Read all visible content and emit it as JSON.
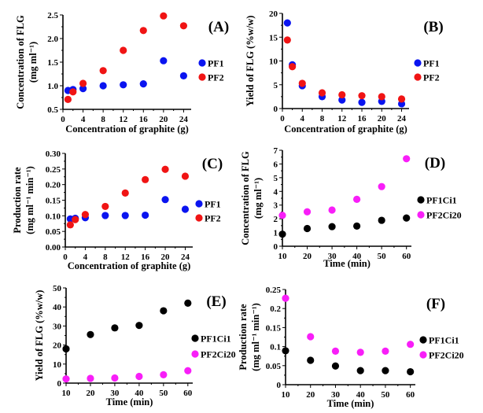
{
  "figure": {
    "panels": [
      "A",
      "B",
      "C",
      "D",
      "E",
      "F"
    ]
  },
  "colors": {
    "PF1": "#0a14f0",
    "PF2": "#f01414",
    "PF1Ci1": "#000000",
    "PF2Ci20": "#f81ef8"
  },
  "chart_data": [
    {
      "id": "A",
      "type": "scatter",
      "panel_label": "(A)",
      "title": "",
      "xlabel": "Concentration of graphite (g)",
      "ylabel_lines": [
        "Concentration of FLG",
        "(mg ml⁻¹)"
      ],
      "xlim": [
        0,
        25.5
      ],
      "ylim": [
        0.5,
        2.5
      ],
      "xticks": [
        0,
        4,
        8,
        12,
        16,
        20,
        24
      ],
      "xtick_labels": [
        "0",
        "4",
        "8",
        "12",
        "16",
        "20",
        "24"
      ],
      "yticks": [
        0.5,
        1.0,
        1.5,
        2.0,
        2.5
      ],
      "ytick_labels": [
        "0.5",
        "1.0",
        "1.5",
        "2.0",
        "2.5"
      ],
      "grid": false,
      "legend": "right",
      "series": [
        {
          "name": "PF1",
          "color_key": "PF1",
          "x": [
            1,
            2,
            4,
            8,
            12,
            16,
            20,
            24
          ],
          "y": [
            0.9,
            0.92,
            0.94,
            1.0,
            1.02,
            1.04,
            1.53,
            1.21
          ]
        },
        {
          "name": "PF2",
          "color_key": "PF2",
          "x": [
            1,
            2,
            4,
            8,
            12,
            16,
            20,
            24
          ],
          "y": [
            0.71,
            0.87,
            1.05,
            1.32,
            1.75,
            2.17,
            2.48,
            2.27
          ]
        }
      ]
    },
    {
      "id": "B",
      "type": "scatter",
      "panel_label": "(B)",
      "title": "",
      "xlabel": "Concentration of graphite (g)",
      "ylabel_lines": [
        "Yield of FLG (%w/w)"
      ],
      "xlim": [
        0,
        25.5
      ],
      "ylim": [
        0,
        20
      ],
      "xticks": [
        0,
        4,
        8,
        12,
        16,
        20,
        24
      ],
      "xtick_labels": [
        "0",
        "4",
        "8",
        "12",
        "16",
        "20",
        "24"
      ],
      "yticks": [
        0,
        5,
        10,
        15,
        20
      ],
      "ytick_labels": [
        "0",
        "5",
        "10",
        "15",
        "20"
      ],
      "grid": false,
      "legend": "right",
      "series": [
        {
          "name": "PF1",
          "color_key": "PF1",
          "x": [
            1,
            2,
            4,
            8,
            12,
            16,
            20,
            24
          ],
          "y": [
            18.0,
            9.2,
            4.8,
            2.5,
            1.8,
            1.3,
            1.5,
            1.0
          ]
        },
        {
          "name": "PF2",
          "color_key": "PF2",
          "x": [
            1,
            2,
            4,
            8,
            12,
            16,
            20,
            24
          ],
          "y": [
            14.4,
            8.8,
            5.3,
            3.3,
            2.9,
            2.7,
            2.5,
            2.0
          ]
        }
      ]
    },
    {
      "id": "C",
      "type": "scatter",
      "panel_label": "(C)",
      "title": "",
      "xlabel": "Concentration of graphite (g)",
      "ylabel_lines": [
        "Production rate",
        "(mg ml⁻¹ min⁻¹)"
      ],
      "xlim": [
        0,
        25.5
      ],
      "ylim": [
        0,
        0.3
      ],
      "xticks": [
        0,
        4,
        8,
        12,
        16,
        20,
        24
      ],
      "xtick_labels": [
        "0",
        "4",
        "8",
        "12",
        "16",
        "20",
        "24"
      ],
      "yticks": [
        0,
        0.05,
        0.1,
        0.15,
        0.2,
        0.25,
        0.3
      ],
      "ytick_labels": [
        "0.00",
        "0.05",
        "0.10",
        "0.15",
        "0.20",
        "0.25",
        "0.30"
      ],
      "grid": false,
      "legend": "right",
      "series": [
        {
          "name": "PF1",
          "color_key": "PF1",
          "x": [
            1,
            2,
            4,
            8,
            12,
            16,
            20,
            24
          ],
          "y": [
            0.09,
            0.092,
            0.094,
            0.101,
            0.101,
            0.102,
            0.152,
            0.121
          ]
        },
        {
          "name": "PF2",
          "color_key": "PF2",
          "x": [
            1,
            2,
            4,
            8,
            12,
            16,
            20,
            24
          ],
          "y": [
            0.071,
            0.088,
            0.104,
            0.13,
            0.173,
            0.216,
            0.249,
            0.227
          ]
        }
      ]
    },
    {
      "id": "D",
      "type": "scatter",
      "panel_label": "(D)",
      "title": "",
      "xlabel": "Time (min)",
      "ylabel_lines": [
        "Concentration of FLG",
        "(mg ml⁻¹)"
      ],
      "xlim": [
        10,
        62
      ],
      "ylim": [
        0,
        7
      ],
      "xticks": [
        10,
        20,
        30,
        40,
        50,
        60
      ],
      "xtick_labels": [
        "10",
        "20",
        "30",
        "40",
        "50",
        "60"
      ],
      "yticks": [
        0,
        1,
        2,
        3,
        4,
        5,
        6,
        7
      ],
      "ytick_labels": [
        "0",
        "1",
        "2",
        "3",
        "4",
        "5",
        "6",
        "7"
      ],
      "grid": false,
      "legend": "right",
      "series": [
        {
          "name": "PF1Ci1",
          "color_key": "PF1Ci1",
          "x": [
            10,
            20,
            30,
            40,
            50,
            60
          ],
          "y": [
            0.88,
            1.29,
            1.43,
            1.47,
            1.89,
            2.06
          ]
        },
        {
          "name": "PF2Ci20",
          "color_key": "PF2Ci20",
          "x": [
            10,
            20,
            30,
            40,
            50,
            60
          ],
          "y": [
            2.25,
            2.51,
            2.64,
            3.42,
            4.35,
            6.38
          ]
        }
      ]
    },
    {
      "id": "E",
      "type": "scatter",
      "panel_label": "(E)",
      "title": "",
      "xlabel": "Time (min)",
      "ylabel_lines": [
        "Yield of FLG (%w/w)"
      ],
      "xlim": [
        10,
        62
      ],
      "ylim": [
        0,
        50
      ],
      "xticks": [
        10,
        20,
        30,
        40,
        50,
        60
      ],
      "xtick_labels": [
        "10",
        "20",
        "30",
        "40",
        "50",
        "60"
      ],
      "yticks": [
        0,
        10,
        20,
        30,
        40,
        50
      ],
      "ytick_labels": [
        "0",
        "10",
        "20",
        "30",
        "40",
        "50"
      ],
      "grid": false,
      "legend": "right",
      "series": [
        {
          "name": "PF1Ci1",
          "color_key": "PF1Ci1",
          "x": [
            10,
            20,
            30,
            40,
            50,
            60
          ],
          "y": [
            18.0,
            25.5,
            29.0,
            30.3,
            38.0,
            42.0
          ]
        },
        {
          "name": "PF2Ci20",
          "color_key": "PF2Ci20",
          "x": [
            10,
            20,
            30,
            40,
            50,
            60
          ],
          "y": [
            2.2,
            2.5,
            2.7,
            3.5,
            4.4,
            6.5
          ]
        }
      ]
    },
    {
      "id": "F",
      "type": "scatter",
      "panel_label": "(F)",
      "title": "",
      "xlabel": "Time (min)",
      "ylabel_lines": [
        "Production rate",
        "(mg ml⁻¹ min⁻¹)"
      ],
      "xlim": [
        10,
        62
      ],
      "ylim": [
        0,
        0.25
      ],
      "xticks": [
        10,
        20,
        30,
        40,
        50,
        60
      ],
      "xtick_labels": [
        "10",
        "20",
        "30",
        "40",
        "50",
        "60"
      ],
      "yticks": [
        0,
        0.05,
        0.1,
        0.15,
        0.2,
        0.25
      ],
      "ytick_labels": [
        "0",
        "0.05",
        "0.1",
        "0.15",
        "0.2",
        "0.25"
      ],
      "grid": false,
      "legend": "right",
      "series": [
        {
          "name": "PF1Ci1",
          "color_key": "PF1Ci1",
          "x": [
            10,
            20,
            30,
            40,
            50,
            60
          ],
          "y": [
            0.089,
            0.064,
            0.049,
            0.037,
            0.037,
            0.034
          ]
        },
        {
          "name": "PF2Ci20",
          "color_key": "PF2Ci20",
          "x": [
            10,
            20,
            30,
            40,
            50,
            60
          ],
          "y": [
            0.227,
            0.126,
            0.088,
            0.085,
            0.088,
            0.106
          ]
        }
      ]
    }
  ]
}
